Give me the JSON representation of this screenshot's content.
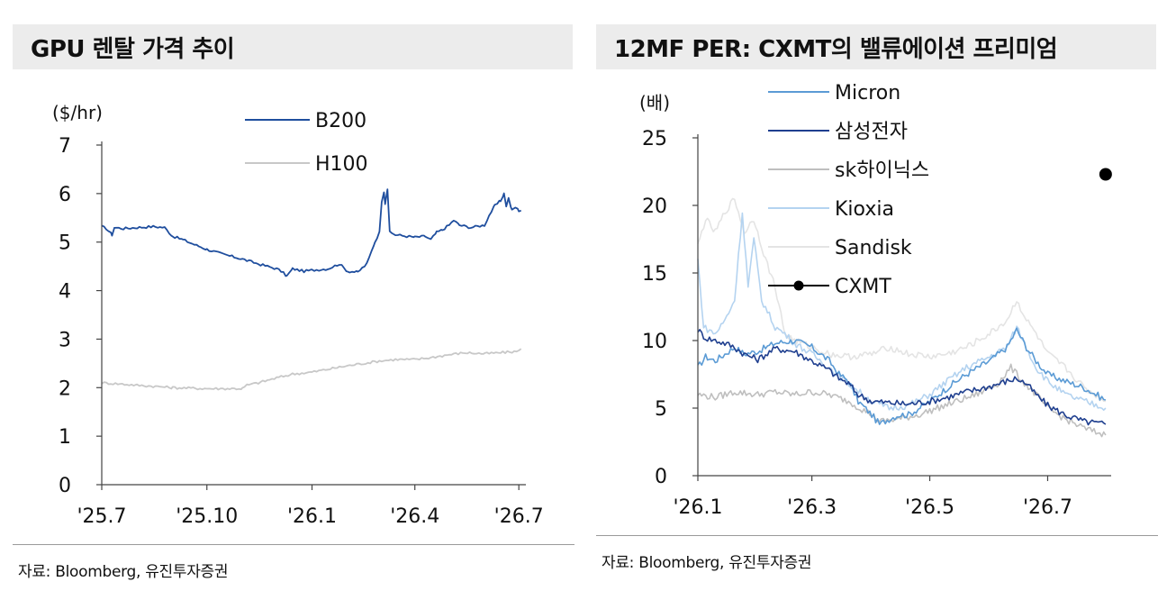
{
  "chart_data": [
    {
      "type": "line",
      "title": "GPU 렌탈 가격 추이",
      "ylabel": "($/hr)",
      "ylim": [
        0,
        7
      ],
      "yticks": [
        "0",
        "1",
        "2",
        "3",
        "4",
        "5",
        "6",
        "7"
      ],
      "x_tick_labels": [
        "'25.7",
        "'25.10",
        "'26.1",
        "'26.4",
        "'26.7"
      ],
      "x_tick_dates": [
        "2025-07-01",
        "2025-10-01",
        "2026-01-01",
        "2026-04-01",
        "2026-07-01"
      ],
      "legend_placement": "top-right",
      "source": "자료:  Bloomberg, 유진투자증권",
      "series": [
        {
          "name": "B200",
          "color": "#1f4e9e",
          "points": [
            [
              "2025-07-01",
              5.32
            ],
            [
              "2025-07-05",
              5.28
            ],
            [
              "2025-07-10",
              5.15
            ],
            [
              "2025-07-12",
              5.3
            ],
            [
              "2025-07-20",
              5.28
            ],
            [
              "2025-08-01",
              5.3
            ],
            [
              "2025-08-15",
              5.32
            ],
            [
              "2025-08-25",
              5.3
            ],
            [
              "2025-09-01",
              5.12
            ],
            [
              "2025-09-10",
              5.05
            ],
            [
              "2025-09-20",
              4.95
            ],
            [
              "2025-10-01",
              4.85
            ],
            [
              "2025-10-15",
              4.75
            ],
            [
              "2025-11-01",
              4.65
            ],
            [
              "2025-11-15",
              4.55
            ],
            [
              "2025-12-01",
              4.45
            ],
            [
              "2025-12-05",
              4.4
            ],
            [
              "2025-12-10",
              4.3
            ],
            [
              "2025-12-15",
              4.45
            ],
            [
              "2025-12-25",
              4.4
            ],
            [
              "2026-01-01",
              4.42
            ],
            [
              "2026-01-15",
              4.45
            ],
            [
              "2026-01-25",
              4.55
            ],
            [
              "2026-02-01",
              4.4
            ],
            [
              "2026-02-10",
              4.38
            ],
            [
              "2026-02-18",
              4.55
            ],
            [
              "2026-02-25",
              5.0
            ],
            [
              "2026-03-01",
              5.2
            ],
            [
              "2026-03-03",
              5.85
            ],
            [
              "2026-03-05",
              6.05
            ],
            [
              "2026-03-06",
              5.8
            ],
            [
              "2026-03-08",
              6.1
            ],
            [
              "2026-03-10",
              5.2
            ],
            [
              "2026-03-15",
              5.15
            ],
            [
              "2026-03-25",
              5.12
            ],
            [
              "2026-04-01",
              5.1
            ],
            [
              "2026-04-10",
              5.12
            ],
            [
              "2026-04-15",
              5.05
            ],
            [
              "2026-04-20",
              5.2
            ],
            [
              "2026-04-25",
              5.25
            ],
            [
              "2026-05-01",
              5.35
            ],
            [
              "2026-05-05",
              5.45
            ],
            [
              "2026-05-10",
              5.35
            ],
            [
              "2026-05-20",
              5.3
            ],
            [
              "2026-06-01",
              5.35
            ],
            [
              "2026-06-05",
              5.55
            ],
            [
              "2026-06-10",
              5.75
            ],
            [
              "2026-06-15",
              5.85
            ],
            [
              "2026-06-18",
              6.0
            ],
            [
              "2026-06-20",
              5.75
            ],
            [
              "2026-06-22",
              5.9
            ],
            [
              "2026-06-25",
              5.65
            ],
            [
              "2026-06-28",
              5.72
            ],
            [
              "2026-07-01",
              5.65
            ],
            [
              "2026-07-03",
              5.65
            ]
          ]
        },
        {
          "name": "H100",
          "color": "#c8c8c8",
          "points": [
            [
              "2025-07-01",
              2.1
            ],
            [
              "2025-07-15",
              2.08
            ],
            [
              "2025-08-01",
              2.05
            ],
            [
              "2025-08-15",
              2.03
            ],
            [
              "2025-09-01",
              2.0
            ],
            [
              "2025-09-15",
              1.99
            ],
            [
              "2025-10-01",
              1.98
            ],
            [
              "2025-10-15",
              1.98
            ],
            [
              "2025-11-01",
              1.98
            ],
            [
              "2025-11-05",
              2.05
            ],
            [
              "2025-11-15",
              2.1
            ],
            [
              "2025-12-01",
              2.2
            ],
            [
              "2025-12-15",
              2.28
            ],
            [
              "2026-01-01",
              2.32
            ],
            [
              "2026-01-15",
              2.38
            ],
            [
              "2026-02-01",
              2.45
            ],
            [
              "2026-02-15",
              2.5
            ],
            [
              "2026-03-01",
              2.55
            ],
            [
              "2026-03-15",
              2.58
            ],
            [
              "2026-04-01",
              2.58
            ],
            [
              "2026-04-15",
              2.62
            ],
            [
              "2026-05-01",
              2.68
            ],
            [
              "2026-05-15",
              2.72
            ],
            [
              "2026-06-01",
              2.7
            ],
            [
              "2026-06-15",
              2.72
            ],
            [
              "2026-07-01",
              2.75
            ],
            [
              "2026-07-03",
              2.8
            ]
          ]
        }
      ]
    },
    {
      "type": "line",
      "title": "12MF PER: CXMT의 밸류에이션 프리미엄",
      "ylabel": "(배)",
      "ylim": [
        0,
        25
      ],
      "yticks": [
        "0",
        "5",
        "10",
        "15",
        "20",
        "25"
      ],
      "x_tick_labels": [
        "'26.1",
        "'26.3",
        "'26.5",
        "'26.7"
      ],
      "x_tick_dates": [
        "2026-01-01",
        "2026-03-01",
        "2026-05-01",
        "2026-07-01"
      ],
      "legend_placement": "top-center",
      "source": "자료: Bloomberg, 유진투자증권",
      "series": [
        {
          "name": "Micron",
          "color": "#5b9bd5",
          "points": [
            [
              "2026-01-01",
              8.0
            ],
            [
              "2026-01-05",
              8.8
            ],
            [
              "2026-01-10",
              8.5
            ],
            [
              "2026-01-15",
              9.0
            ],
            [
              "2026-01-20",
              9.5
            ],
            [
              "2026-01-25",
              9.0
            ],
            [
              "2026-02-01",
              9.2
            ],
            [
              "2026-02-10",
              9.8
            ],
            [
              "2026-02-20",
              10.0
            ],
            [
              "2026-03-01",
              9.5
            ],
            [
              "2026-03-10",
              8.5
            ],
            [
              "2026-03-15",
              7.5
            ],
            [
              "2026-03-20",
              7.0
            ],
            [
              "2026-03-25",
              5.5
            ],
            [
              "2026-04-01",
              4.5
            ],
            [
              "2026-04-05",
              3.8
            ],
            [
              "2026-04-10",
              4.2
            ],
            [
              "2026-04-15",
              4.5
            ],
            [
              "2026-04-20",
              4.5
            ],
            [
              "2026-05-01",
              5.5
            ],
            [
              "2026-05-10",
              6.5
            ],
            [
              "2026-05-20",
              7.5
            ],
            [
              "2026-06-01",
              8.5
            ],
            [
              "2026-06-10",
              9.5
            ],
            [
              "2026-06-15",
              10.8
            ],
            [
              "2026-06-20",
              9.5
            ],
            [
              "2026-06-25",
              8.5
            ],
            [
              "2026-07-01",
              7.5
            ],
            [
              "2026-07-10",
              7.0
            ],
            [
              "2026-07-20",
              6.5
            ],
            [
              "2026-07-31",
              5.6
            ]
          ]
        },
        {
          "name": "삼성전자",
          "color": "#1f3f8f",
          "points": [
            [
              "2026-01-01",
              10.8
            ],
            [
              "2026-01-05",
              10.2
            ],
            [
              "2026-01-10",
              10.0
            ],
            [
              "2026-01-15",
              9.8
            ],
            [
              "2026-01-20",
              9.5
            ],
            [
              "2026-01-25",
              9.0
            ],
            [
              "2026-02-01",
              8.6
            ],
            [
              "2026-02-10",
              9.4
            ],
            [
              "2026-02-20",
              9.2
            ],
            [
              "2026-03-01",
              8.5
            ],
            [
              "2026-03-10",
              7.8
            ],
            [
              "2026-03-15",
              7.2
            ],
            [
              "2026-03-20",
              6.8
            ],
            [
              "2026-03-25",
              6.0
            ],
            [
              "2026-04-01",
              5.5
            ],
            [
              "2026-04-10",
              5.4
            ],
            [
              "2026-04-20",
              5.3
            ],
            [
              "2026-05-01",
              5.5
            ],
            [
              "2026-05-10",
              5.8
            ],
            [
              "2026-05-20",
              6.2
            ],
            [
              "2026-06-01",
              6.6
            ],
            [
              "2026-06-10",
              7.0
            ],
            [
              "2026-06-15",
              7.2
            ],
            [
              "2026-06-20",
              6.8
            ],
            [
              "2026-06-25",
              6.0
            ],
            [
              "2026-07-01",
              5.2
            ],
            [
              "2026-07-10",
              4.5
            ],
            [
              "2026-07-20",
              4.0
            ],
            [
              "2026-07-31",
              3.8
            ]
          ]
        },
        {
          "name": "sk하이닉스",
          "color": "#bfbfbf",
          "points": [
            [
              "2026-01-01",
              6.0
            ],
            [
              "2026-01-10",
              5.8
            ],
            [
              "2026-01-20",
              6.2
            ],
            [
              "2026-02-01",
              6.0
            ],
            [
              "2026-02-10",
              6.2
            ],
            [
              "2026-02-20",
              6.0
            ],
            [
              "2026-03-01",
              6.2
            ],
            [
              "2026-03-10",
              6.0
            ],
            [
              "2026-03-20",
              5.5
            ],
            [
              "2026-04-01",
              4.5
            ],
            [
              "2026-04-05",
              4.0
            ],
            [
              "2026-04-15",
              4.2
            ],
            [
              "2026-04-25",
              4.5
            ],
            [
              "2026-05-05",
              5.0
            ],
            [
              "2026-05-15",
              5.5
            ],
            [
              "2026-05-25",
              6.0
            ],
            [
              "2026-06-05",
              6.8
            ],
            [
              "2026-06-12",
              8.0
            ],
            [
              "2026-06-18",
              7.0
            ],
            [
              "2026-06-25",
              6.0
            ],
            [
              "2026-07-01",
              5.0
            ],
            [
              "2026-07-10",
              4.2
            ],
            [
              "2026-07-20",
              3.5
            ],
            [
              "2026-07-31",
              3.0
            ]
          ]
        },
        {
          "name": "Kioxia",
          "color": "#b4d3f0",
          "points": [
            [
              "2026-01-01",
              16.0
            ],
            [
              "2026-01-04",
              11.0
            ],
            [
              "2026-01-10",
              10.5
            ],
            [
              "2026-01-15",
              11.5
            ],
            [
              "2026-01-20",
              13.0
            ],
            [
              "2026-01-24",
              19.5
            ],
            [
              "2026-01-27",
              14.0
            ],
            [
              "2026-01-30",
              17.5
            ],
            [
              "2026-02-03",
              13.0
            ],
            [
              "2026-02-10",
              11.0
            ],
            [
              "2026-02-15",
              10.5
            ],
            [
              "2026-02-20",
              9.8
            ],
            [
              "2026-03-01",
              9.0
            ],
            [
              "2026-03-10",
              8.0
            ],
            [
              "2026-03-20",
              6.8
            ],
            [
              "2026-04-01",
              5.5
            ],
            [
              "2026-04-10",
              5.0
            ],
            [
              "2026-04-20",
              5.2
            ],
            [
              "2026-05-01",
              6.0
            ],
            [
              "2026-05-10",
              7.0
            ],
            [
              "2026-05-20",
              8.0
            ],
            [
              "2026-06-01",
              8.8
            ],
            [
              "2026-06-10",
              9.5
            ],
            [
              "2026-06-15",
              11.0
            ],
            [
              "2026-06-20",
              9.5
            ],
            [
              "2026-06-25",
              8.0
            ],
            [
              "2026-07-01",
              7.0
            ],
            [
              "2026-07-10",
              6.0
            ],
            [
              "2026-07-20",
              5.5
            ],
            [
              "2026-07-31",
              5.0
            ]
          ]
        },
        {
          "name": "Sandisk",
          "color": "#e4e4e4",
          "points": [
            [
              "2026-01-01",
              17.0
            ],
            [
              "2026-01-05",
              19.0
            ],
            [
              "2026-01-10",
              18.0
            ],
            [
              "2026-01-15",
              19.5
            ],
            [
              "2026-01-20",
              20.5
            ],
            [
              "2026-01-25",
              18.0
            ],
            [
              "2026-01-30",
              19.0
            ],
            [
              "2026-02-05",
              16.0
            ],
            [
              "2026-02-10",
              14.0
            ],
            [
              "2026-02-15",
              10.5
            ],
            [
              "2026-02-20",
              10.0
            ],
            [
              "2026-03-01",
              9.5
            ],
            [
              "2026-03-10",
              9.0
            ],
            [
              "2026-03-20",
              8.8
            ],
            [
              "2026-04-01",
              9.0
            ],
            [
              "2026-04-10",
              9.5
            ],
            [
              "2026-04-20",
              9.0
            ],
            [
              "2026-05-01",
              8.8
            ],
            [
              "2026-05-10",
              9.0
            ],
            [
              "2026-05-20",
              9.5
            ],
            [
              "2026-06-01",
              10.5
            ],
            [
              "2026-06-10",
              11.5
            ],
            [
              "2026-06-15",
              13.0
            ],
            [
              "2026-06-20",
              11.5
            ],
            [
              "2026-06-25",
              10.5
            ],
            [
              "2026-07-01",
              9.0
            ],
            [
              "2026-07-10",
              8.0
            ],
            [
              "2026-07-20",
              6.5
            ],
            [
              "2026-07-31",
              5.5
            ]
          ]
        },
        {
          "name": "CXMT",
          "color": "#000000",
          "marker": true,
          "points": [
            [
              "2026-07-31",
              22.3
            ]
          ]
        }
      ]
    }
  ]
}
